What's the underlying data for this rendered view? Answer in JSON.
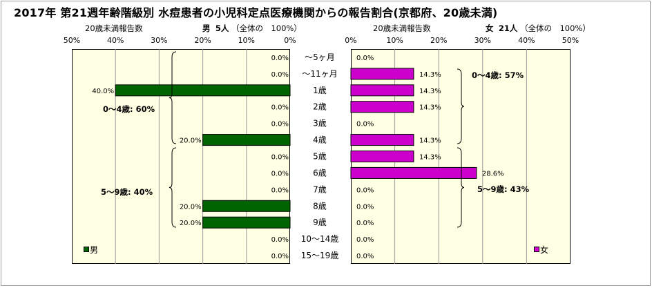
{
  "title": "2017年 第21週年齢階級別 水痘患者の小児科定点医療機関からの報告割合(京都府、20歳未満)",
  "left_header": {
    "axis_caption": "20歳未満報告数",
    "sex": "男",
    "count": "5人",
    "total": "（全体の　100%）"
  },
  "right_header": {
    "axis_caption": "20歳未満報告数",
    "sex": "女",
    "count": "21人",
    "total": "（全体の　100%）"
  },
  "chart_data": [
    {
      "type": "bar",
      "orientation": "horizontal",
      "direction": "right-to-left",
      "categories": [
        "～5ヶ月",
        "～11ヶ月",
        "1歳",
        "2歳",
        "3歳",
        "4歳",
        "5歳",
        "6歳",
        "7歳",
        "8歳",
        "9歳",
        "10～14歳",
        "15～19歳"
      ],
      "series": [
        {
          "name": "男",
          "values": [
            0,
            0,
            40,
            0,
            0,
            20,
            0,
            0,
            0,
            20,
            20,
            0,
            0
          ],
          "color": "#006400"
        }
      ],
      "data_labels": [
        "0.0%",
        "0.0%",
        "40.0%",
        "0.0%",
        "0.0%",
        "20.0%",
        "0.0%",
        "0.0%",
        "0.0%",
        "20.0%",
        "20.0%",
        "0.0%",
        "0.0%"
      ],
      "xlim": [
        0,
        50
      ],
      "x_ticks": [
        "50%",
        "40%",
        "30%",
        "20%",
        "10%",
        "0%"
      ],
      "groups": [
        {
          "label": "0～4歳: 60%"
        },
        {
          "label": "5～9歳: 40%"
        }
      ],
      "legend": "bottom-left",
      "plot_background": "#ffffe4"
    },
    {
      "type": "bar",
      "orientation": "horizontal",
      "direction": "left-to-right",
      "categories": [
        "～5ヶ月",
        "～11ヶ月",
        "1歳",
        "2歳",
        "3歳",
        "4歳",
        "5歳",
        "6歳",
        "7歳",
        "8歳",
        "9歳",
        "10～14歳",
        "15～19歳"
      ],
      "series": [
        {
          "name": "女",
          "values": [
            0,
            14.3,
            14.3,
            14.3,
            0,
            14.3,
            14.3,
            28.6,
            0,
            0,
            0,
            0,
            0
          ],
          "color": "#cc00cc"
        }
      ],
      "data_labels": [
        "0.0%",
        "14.3%",
        "14.3%",
        "14.3%",
        "0.0%",
        "14.3%",
        "14.3%",
        "28.6%",
        "0.0%",
        "0.0%",
        "0.0%",
        "0.0%",
        "0.0%"
      ],
      "xlim": [
        0,
        50
      ],
      "x_ticks": [
        "0%",
        "10%",
        "20%",
        "30%",
        "40%",
        "50%"
      ],
      "groups": [
        {
          "label": "0～4歳: 57%"
        },
        {
          "label": "5～9歳: 43%"
        }
      ],
      "legend": "bottom-right",
      "plot_background": "#ffffe4"
    }
  ]
}
